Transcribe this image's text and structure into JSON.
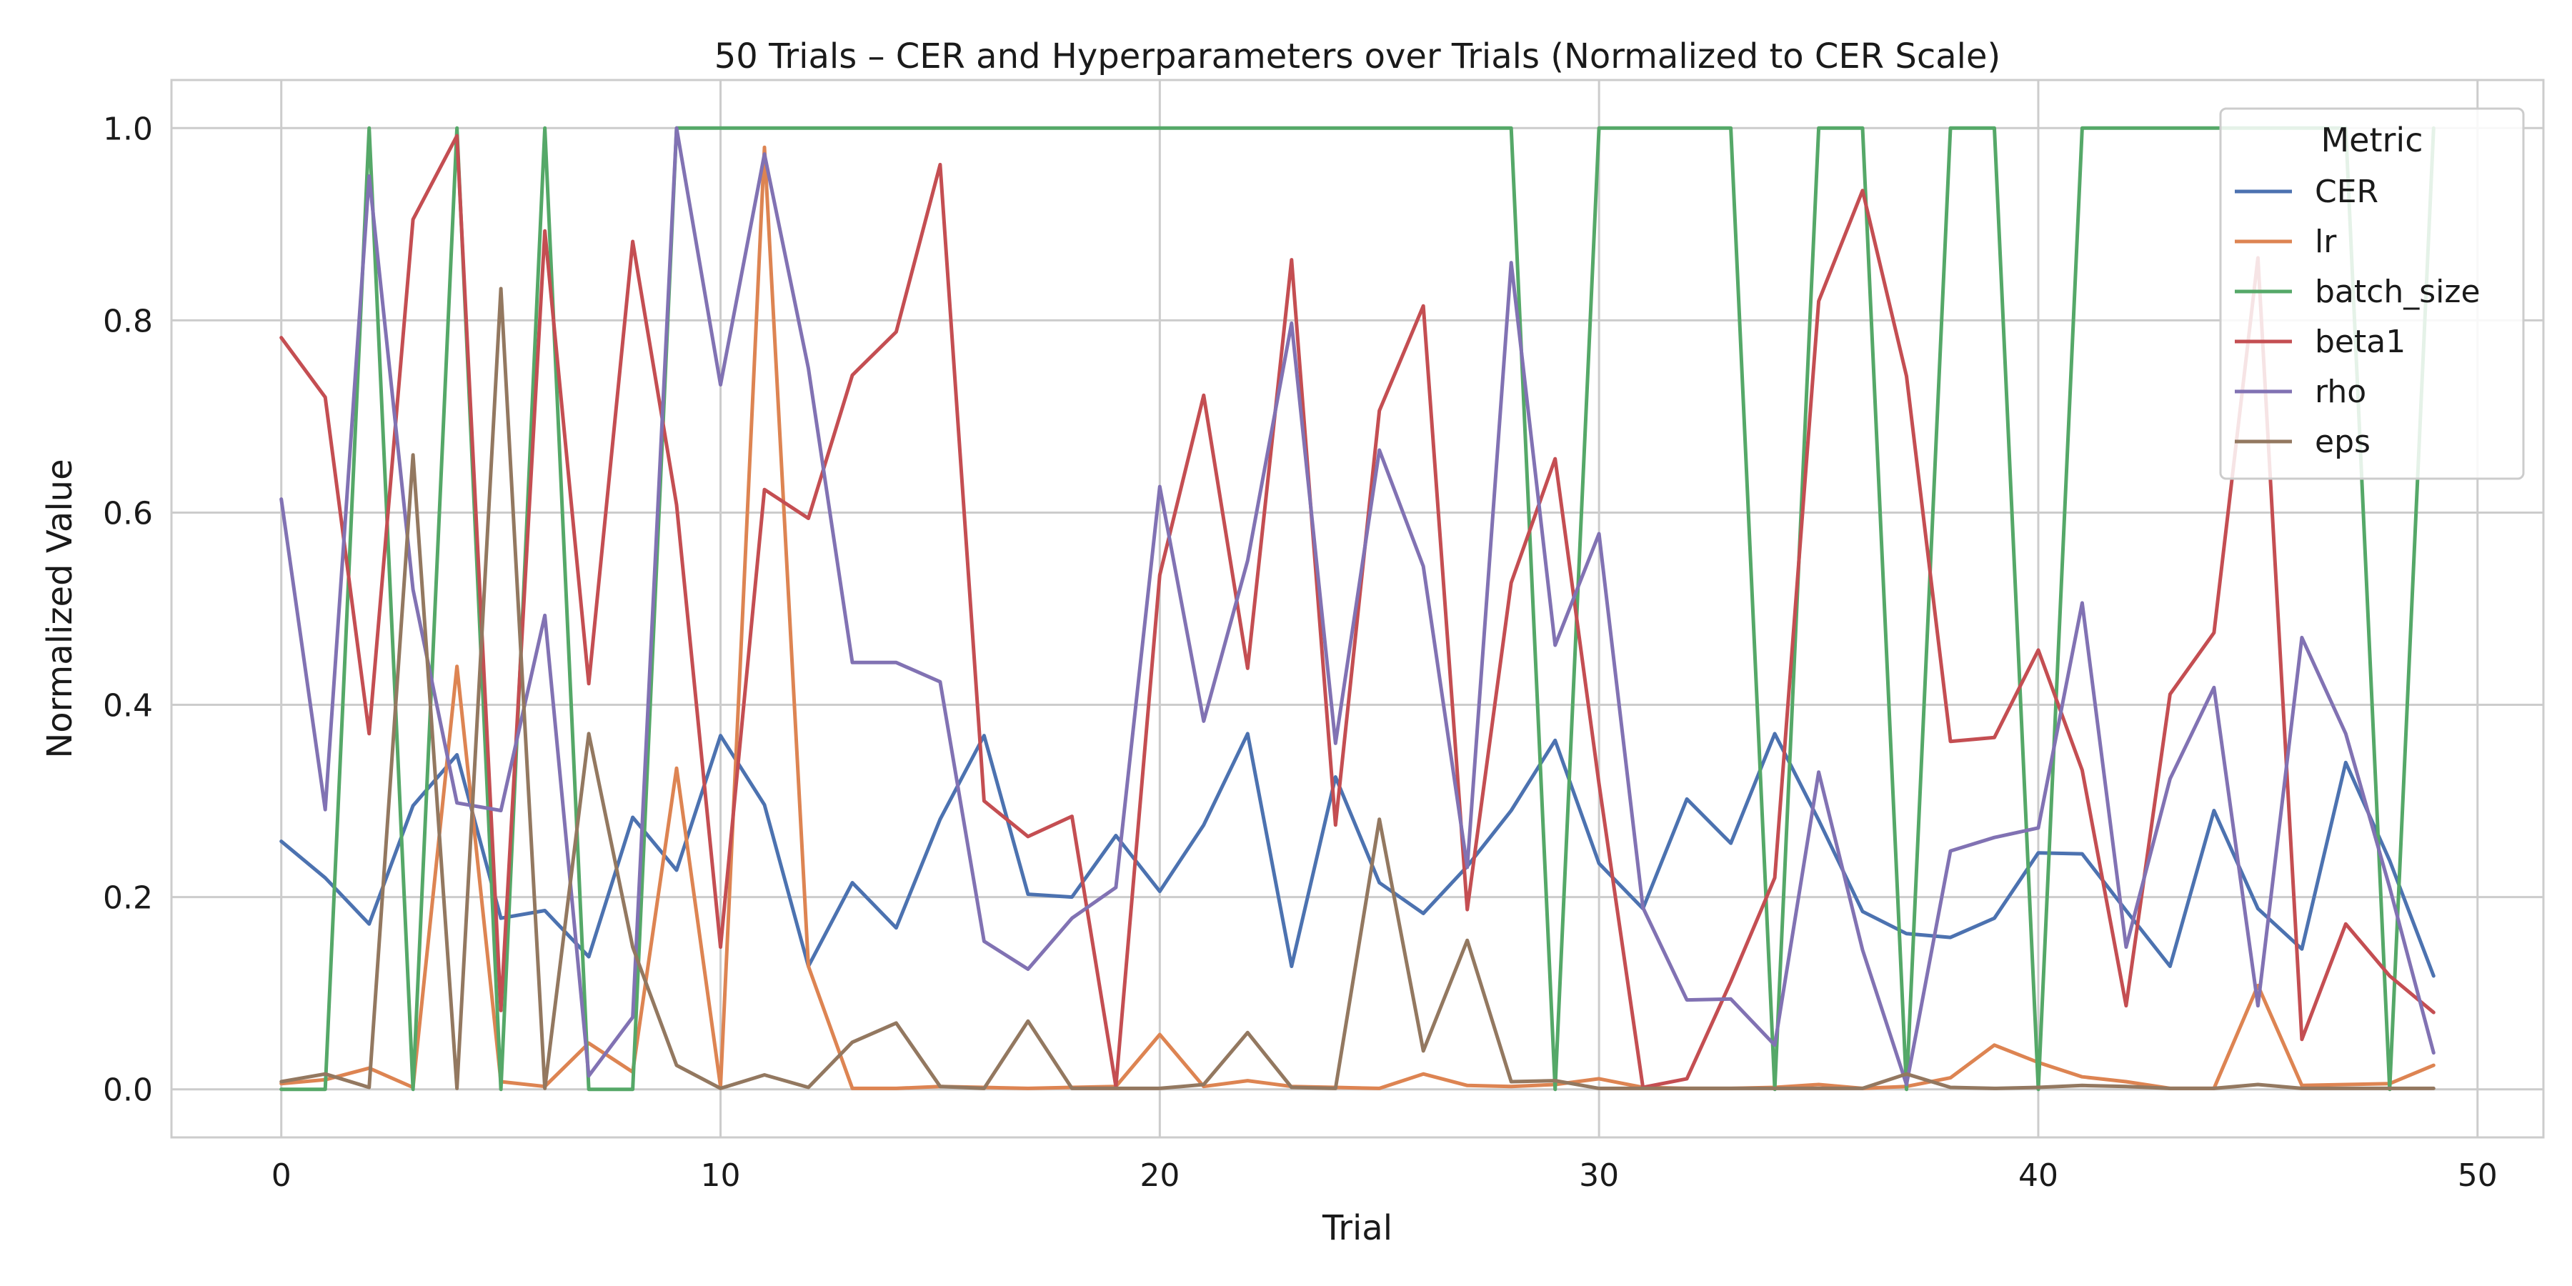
{
  "chart_data": {
    "type": "line",
    "title": "50 Trials – CER and Hyperparameters over Trials (Normalized to CER Scale)",
    "xlabel": "Trial",
    "ylabel": "Normalized Value",
    "xlim": [
      -2.5,
      51.5
    ],
    "ylim": [
      -0.05,
      1.05
    ],
    "xticks": [
      0,
      10,
      20,
      30,
      40,
      50
    ],
    "yticks": [
      0.0,
      0.2,
      0.4,
      0.6,
      0.8,
      1.0
    ],
    "xtick_labels": [
      "0",
      "10",
      "20",
      "30",
      "40",
      "50"
    ],
    "ytick_labels": [
      "0.0",
      "0.2",
      "0.4",
      "0.6",
      "0.8",
      "1.0"
    ],
    "grid": true,
    "legend": {
      "title": "Metric",
      "placement": "top-right"
    },
    "x": [
      0,
      1,
      2,
      3,
      4,
      5,
      6,
      7,
      8,
      9,
      10,
      11,
      12,
      13,
      14,
      15,
      16,
      17,
      18,
      19,
      20,
      21,
      22,
      23,
      24,
      25,
      26,
      27,
      28,
      29,
      30,
      31,
      32,
      33,
      34,
      35,
      36,
      37,
      38,
      39,
      40,
      41,
      42,
      43,
      44,
      45,
      46,
      47,
      48,
      49
    ],
    "series": [
      {
        "name": "CER",
        "color": "#4c72b0",
        "values": [
          0.258,
          0.22,
          0.172,
          0.295,
          0.348,
          0.178,
          0.186,
          0.138,
          0.283,
          0.228,
          0.368,
          0.296,
          0.128,
          0.215,
          0.168,
          0.281,
          0.368,
          0.203,
          0.2,
          0.264,
          0.206,
          0.275,
          0.37,
          0.128,
          0.325,
          0.215,
          0.183,
          0.232,
          0.29,
          0.363,
          0.235,
          0.188,
          0.302,
          0.256,
          0.37,
          0.28,
          0.185,
          0.162,
          0.158,
          0.178,
          0.246,
          0.245,
          0.186,
          0.128,
          0.29,
          0.188,
          0.146,
          0.34,
          0.238,
          0.118
        ]
      },
      {
        "name": "lr",
        "color": "#dd8452",
        "values": [
          0.006,
          0.01,
          0.022,
          0.002,
          0.44,
          0.008,
          0.003,
          0.048,
          0.018,
          0.334,
          0.003,
          0.98,
          0.128,
          0.001,
          0.001,
          0.003,
          0.002,
          0.001,
          0.002,
          0.003,
          0.057,
          0.003,
          0.009,
          0.003,
          0.002,
          0.001,
          0.016,
          0.004,
          0.003,
          0.005,
          0.011,
          0.002,
          0.001,
          0.001,
          0.002,
          0.005,
          0.001,
          0.003,
          0.012,
          0.046,
          0.028,
          0.013,
          0.008,
          0.001,
          0.001,
          0.108,
          0.004,
          0.005,
          0.006,
          0.025
        ]
      },
      {
        "name": "batch_size",
        "color": "#55a868",
        "values": [
          0,
          0,
          1,
          0,
          1,
          0,
          1,
          0,
          0,
          1,
          1,
          1,
          1,
          1,
          1,
          1,
          1,
          1,
          1,
          1,
          1,
          1,
          1,
          1,
          1,
          1,
          1,
          1,
          1,
          0,
          1,
          1,
          1,
          1,
          0,
          1,
          1,
          0,
          1,
          1,
          0,
          1,
          1,
          1,
          1,
          1,
          1,
          1,
          0,
          1
        ]
      },
      {
        "name": "beta1",
        "color": "#c44e52",
        "values": [
          0.782,
          0.72,
          0.37,
          0.905,
          0.992,
          0.082,
          0.893,
          0.422,
          0.882,
          0.608,
          0.148,
          0.624,
          0.594,
          0.743,
          0.788,
          0.962,
          0.3,
          0.263,
          0.284,
          0.003,
          0.535,
          0.722,
          0.438,
          0.863,
          0.275,
          0.706,
          0.815,
          0.187,
          0.527,
          0.656,
          0.318,
          0.002,
          0.011,
          0.112,
          0.22,
          0.82,
          0.935,
          0.742,
          0.362,
          0.366,
          0.457,
          0.332,
          0.087,
          0.411,
          0.475,
          0.865,
          0.052,
          0.172,
          0.118,
          0.08
        ]
      },
      {
        "name": "rho",
        "color": "#8172b3",
        "values": [
          0.614,
          0.291,
          0.95,
          0.52,
          0.298,
          0.29,
          0.493,
          0.014,
          0.075,
          1.0,
          0.733,
          0.973,
          0.75,
          0.444,
          0.444,
          0.424,
          0.154,
          0.125,
          0.178,
          0.21,
          0.627,
          0.383,
          0.55,
          0.797,
          0.36,
          0.665,
          0.544,
          0.231,
          0.86,
          0.462,
          0.578,
          0.189,
          0.093,
          0.094,
          0.046,
          0.33,
          0.145,
          0.005,
          0.248,
          0.262,
          0.272,
          0.506,
          0.148,
          0.323,
          0.418,
          0.087,
          0.47,
          0.37,
          0.21,
          0.038
        ]
      },
      {
        "name": "eps",
        "color": "#937860",
        "values": [
          0.008,
          0.016,
          0.002,
          0.66,
          0.001,
          0.833,
          0.001,
          0.37,
          0.148,
          0.025,
          0.001,
          0.015,
          0.002,
          0.049,
          0.069,
          0.003,
          0.001,
          0.071,
          0.001,
          0.001,
          0.001,
          0.005,
          0.059,
          0.002,
          0.001,
          0.281,
          0.04,
          0.155,
          0.008,
          0.009,
          0.001,
          0.001,
          0.001,
          0.001,
          0.001,
          0.001,
          0.001,
          0.016,
          0.002,
          0.001,
          0.002,
          0.004,
          0.003,
          0.001,
          0.001,
          0.005,
          0.001,
          0.001,
          0.001,
          0.001
        ]
      }
    ]
  }
}
